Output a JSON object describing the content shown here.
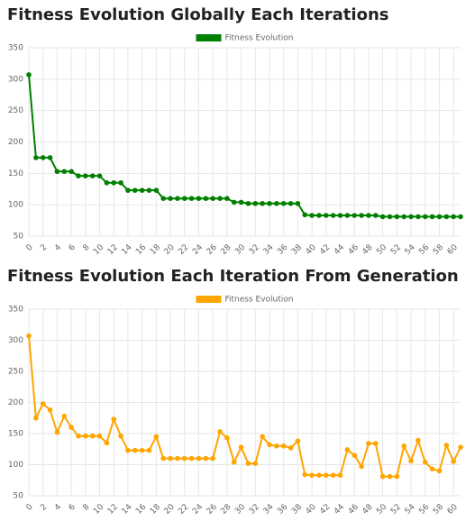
{
  "chart_data": [
    {
      "type": "line",
      "title": "Fitness Evolution Globally Each Iterations",
      "x": [
        0,
        1,
        2,
        3,
        4,
        5,
        6,
        7,
        8,
        9,
        10,
        11,
        12,
        13,
        14,
        15,
        16,
        17,
        18,
        19,
        20,
        21,
        22,
        23,
        24,
        25,
        26,
        27,
        28,
        29,
        30,
        31,
        32,
        33,
        34,
        35,
        36,
        37,
        38,
        39,
        40,
        41,
        42,
        43,
        44,
        45,
        46,
        47,
        48,
        49,
        50,
        51,
        52,
        53,
        54,
        55,
        56,
        57,
        58,
        59,
        60,
        61
      ],
      "series": [
        {
          "name": "Fitness Evolution",
          "color": "#008000",
          "values": [
            307,
            175,
            175,
            175,
            153,
            153,
            153,
            146,
            146,
            146,
            146,
            135,
            135,
            135,
            123,
            123,
            123,
            123,
            123,
            110,
            110,
            110,
            110,
            110,
            110,
            110,
            110,
            110,
            110,
            104,
            104,
            102,
            102,
            102,
            102,
            102,
            102,
            102,
            102,
            84,
            83,
            83,
            83,
            83,
            83,
            83,
            83,
            83,
            83,
            83,
            81,
            81,
            81,
            81,
            81,
            81,
            81,
            81,
            81,
            81,
            81,
            81
          ]
        }
      ],
      "xlim": [
        0,
        61
      ],
      "xticks": [
        0,
        2,
        4,
        6,
        8,
        10,
        12,
        14,
        16,
        18,
        20,
        22,
        24,
        26,
        28,
        30,
        32,
        34,
        36,
        38,
        40,
        42,
        44,
        46,
        48,
        50,
        52,
        54,
        56,
        58,
        60
      ],
      "ylim": [
        50,
        350
      ],
      "yticks": [
        50,
        100,
        150,
        200,
        250,
        300,
        350
      ],
      "grid": true,
      "legend": "top"
    },
    {
      "type": "line",
      "title": "Fitness Evolution Each Iteration From Generation",
      "x": [
        0,
        1,
        2,
        3,
        4,
        5,
        6,
        7,
        8,
        9,
        10,
        11,
        12,
        13,
        14,
        15,
        16,
        17,
        18,
        19,
        20,
        21,
        22,
        23,
        24,
        25,
        26,
        27,
        28,
        29,
        30,
        31,
        32,
        33,
        34,
        35,
        36,
        37,
        38,
        39,
        40,
        41,
        42,
        43,
        44,
        45,
        46,
        47,
        48,
        49,
        50,
        51,
        52,
        53,
        54,
        55,
        56,
        57,
        58,
        59,
        60,
        61
      ],
      "series": [
        {
          "name": "Fitness Evolution",
          "color": "#ffa500",
          "values": [
            307,
            175,
            198,
            188,
            152,
            178,
            160,
            146,
            146,
            146,
            146,
            135,
            173,
            146,
            123,
            123,
            123,
            123,
            145,
            110,
            110,
            110,
            110,
            110,
            110,
            110,
            110,
            153,
            143,
            104,
            128,
            102,
            102,
            145,
            132,
            130,
            130,
            127,
            138,
            84,
            83,
            83,
            83,
            83,
            83,
            124,
            115,
            97,
            134,
            134,
            81,
            81,
            81,
            130,
            106,
            139,
            104,
            93,
            90,
            131,
            105,
            128
          ]
        }
      ],
      "xlim": [
        0,
        61
      ],
      "xticks": [
        0,
        2,
        4,
        6,
        8,
        10,
        12,
        14,
        16,
        18,
        20,
        22,
        24,
        26,
        28,
        30,
        32,
        34,
        36,
        38,
        40,
        42,
        44,
        46,
        48,
        50,
        52,
        54,
        56,
        58,
        60
      ],
      "ylim": [
        50,
        350
      ],
      "yticks": [
        50,
        100,
        150,
        200,
        250,
        300,
        350
      ],
      "grid": true,
      "legend": "top"
    }
  ]
}
